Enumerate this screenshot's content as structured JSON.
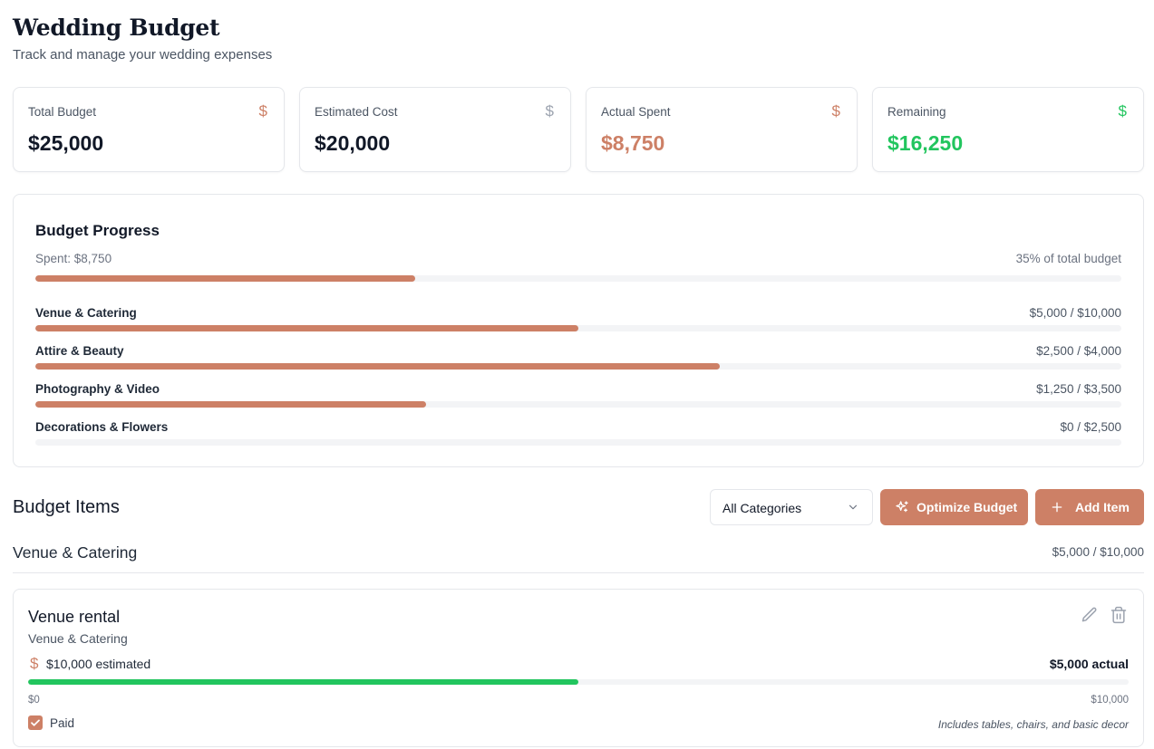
{
  "header": {
    "title": "Wedding Budget",
    "subtitle": "Track and manage your wedding expenses"
  },
  "stats": [
    {
      "label": "Total Budget",
      "value": "$25,000",
      "icon": "dollar-icon",
      "value_color": "#111827",
      "icon_color": "#cd8066"
    },
    {
      "label": "Estimated Cost",
      "value": "$20,000",
      "icon": "dollar-icon",
      "value_color": "#111827",
      "icon_color": "#9ca3af"
    },
    {
      "label": "Actual Spent",
      "value": "$8,750",
      "icon": "dollar-icon",
      "value_color": "#cd8066",
      "icon_color": "#cd8066"
    },
    {
      "label": "Remaining",
      "value": "$16,250",
      "icon": "dollar-icon",
      "value_color": "#22c55e",
      "icon_color": "#22c55e"
    }
  ],
  "progress": {
    "title": "Budget Progress",
    "spent_label": "Spent: $8,750",
    "percent_label": "35% of total budget",
    "overall_fraction": 0.35,
    "categories": [
      {
        "name": "Venue & Catering",
        "amount": "$5,000 / $10,000",
        "fraction": 0.5
      },
      {
        "name": "Attire & Beauty",
        "amount": "$2,500 / $4,000",
        "fraction": 0.63
      },
      {
        "name": "Photography & Video",
        "amount": "$1,250 / $3,500",
        "fraction": 0.36
      },
      {
        "name": "Decorations & Flowers",
        "amount": "$0 / $2,500",
        "fraction": 0
      }
    ]
  },
  "items_section": {
    "title": "Budget Items",
    "filter": {
      "selected": "All Categories"
    },
    "optimize_label": "Optimize Budget",
    "add_label": "Add Item"
  },
  "groups": [
    {
      "title": "Venue & Catering",
      "amount": "$5,000 / $10,000",
      "items": [
        {
          "name": "Venue rental",
          "category": "Venue & Catering",
          "estimated": "$10,000 estimated",
          "actual": "$5,000 actual",
          "fraction": 0.5,
          "range_min": "$0",
          "range_max": "$10,000",
          "paid_label": "Paid",
          "paid": true,
          "note": "Includes tables, chairs, and basic decor"
        }
      ]
    }
  ],
  "colors": {
    "accent": "#cd8066",
    "success": "#22c55e"
  }
}
